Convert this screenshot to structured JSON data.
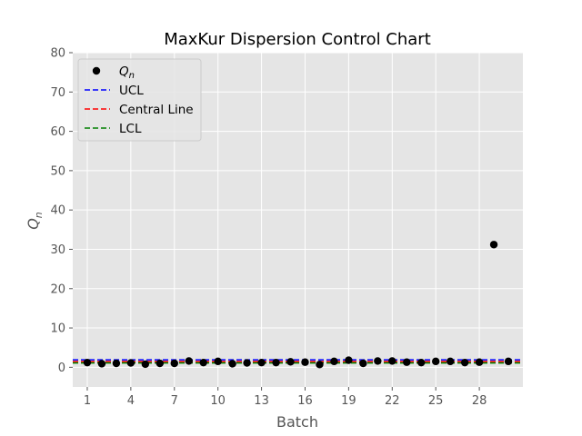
{
  "chart_data": {
    "type": "scatter",
    "title": "MaxKur Dispersion Control Chart",
    "xlabel": "Batch",
    "ylabel": "Q",
    "ylabel_subscript": "n",
    "xlim": [
      0,
      31
    ],
    "ylim": [
      -5,
      80
    ],
    "xticks": [
      1,
      4,
      7,
      10,
      13,
      16,
      19,
      22,
      25,
      28
    ],
    "yticks": [
      0,
      10,
      20,
      30,
      40,
      50,
      60,
      70,
      80
    ],
    "grid": true,
    "legend_placement": "upper-left",
    "legend": [
      {
        "label": "Q",
        "label_subscript": "n",
        "kind": "marker",
        "color": "#000000"
      },
      {
        "label": "UCL",
        "kind": "dashed-line",
        "color": "#0000ff"
      },
      {
        "label": "Central Line",
        "kind": "dashed-line",
        "color": "#ff0000"
      },
      {
        "label": "LCL",
        "kind": "dashed-line",
        "color": "#008000"
      }
    ],
    "series": [
      {
        "name": "Qn",
        "x": [
          1,
          2,
          3,
          4,
          5,
          6,
          7,
          8,
          9,
          10,
          11,
          12,
          13,
          14,
          15,
          16,
          17,
          18,
          19,
          20,
          21,
          22,
          23,
          24,
          25,
          26,
          27,
          28,
          29,
          30
        ],
        "y": [
          1.2,
          0.9,
          1.0,
          1.1,
          0.8,
          1.0,
          1.0,
          1.6,
          1.2,
          1.5,
          0.9,
          1.1,
          1.2,
          1.2,
          1.4,
          1.3,
          0.7,
          1.5,
          1.8,
          1.0,
          1.6,
          1.6,
          1.3,
          1.2,
          1.5,
          1.5,
          1.2,
          1.3,
          31.2,
          1.5
        ]
      }
    ],
    "lines": [
      {
        "name": "UCL",
        "y": 1.9,
        "color": "#0000ff"
      },
      {
        "name": "Central Line",
        "y": 1.45,
        "color": "#ff0000"
      },
      {
        "name": "LCL",
        "y": 1.1,
        "color": "#008000"
      }
    ],
    "colors": {
      "plot_background": "#e5e5e5",
      "grid": "#ffffff",
      "points": "#000000"
    }
  }
}
